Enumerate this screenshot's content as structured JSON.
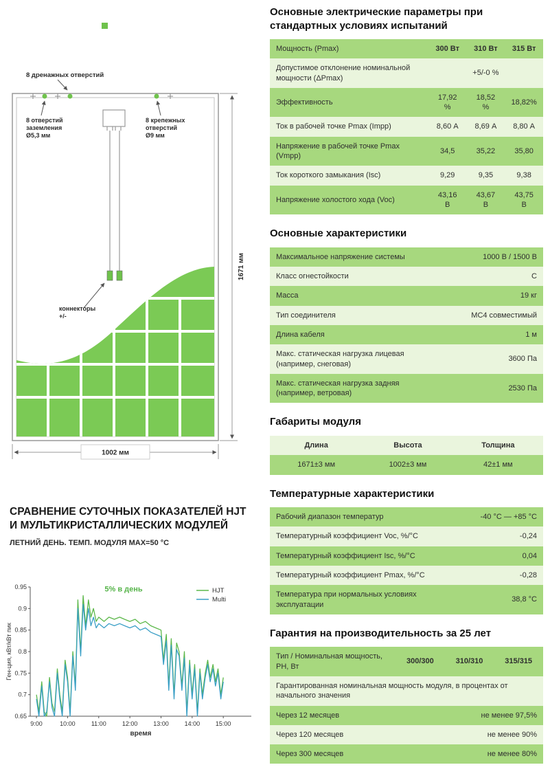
{
  "colors": {
    "row_green": "#a7d87e",
    "row_light": "#eaf5dd",
    "cell_green": "#7bca55",
    "accent_green": "#58b54a",
    "chart_hjt": "#5cb84a",
    "chart_multi": "#3a9fc6",
    "frame_gray": "#999999"
  },
  "diagram": {
    "drain_label": "8 дренажных отверстий",
    "ground_label": [
      "8 отверстий",
      "заземления",
      "Ø5,3 мм"
    ],
    "mount_label": [
      "8 крепежных",
      "отверстий",
      "Ø9 мм"
    ],
    "connectors_label": [
      "коннекторы",
      "+/-"
    ],
    "height_dim": "1671 мм",
    "width_dim": "1002 мм"
  },
  "comparison": {
    "title": "Сравнение суточных показателей HJT и мультикристаллических модулей",
    "subtitle": "ЛЕТНИЙ ДЕНЬ. ТЕМП. МОДУЛЯ MAX=50 °C"
  },
  "chart_data": {
    "type": "line",
    "title": "",
    "ylabel": "Ген-ция, кВт/кВт пик",
    "xlabel": "время",
    "annotation": "5% в день",
    "annotation_x": 11.8,
    "annotation_y": 0.94,
    "xlim": [
      8.8,
      15.9
    ],
    "ylim": [
      0.65,
      0.95
    ],
    "yticks": [
      "0.65",
      "0.7",
      "0.75",
      "0.8",
      "0.85",
      "0.9",
      "0.95"
    ],
    "ytick_values": [
      0.65,
      0.7,
      0.75,
      0.8,
      0.85,
      0.9,
      0.95
    ],
    "xticks": [
      "9:00",
      "10:00",
      "11:00",
      "12:00",
      "13:00",
      "14:00",
      "15:00"
    ],
    "xtick_values": [
      9,
      10,
      11,
      12,
      13,
      14,
      15
    ],
    "legend_position": "top-right",
    "grid": false,
    "x": [
      9.0,
      9.08,
      9.17,
      9.25,
      9.33,
      9.42,
      9.5,
      9.58,
      9.67,
      9.75,
      9.83,
      9.92,
      10.0,
      10.08,
      10.17,
      10.25,
      10.33,
      10.42,
      10.5,
      10.58,
      10.67,
      10.75,
      10.83,
      10.92,
      11.0,
      11.17,
      11.33,
      11.5,
      11.67,
      11.83,
      12.0,
      12.17,
      12.33,
      12.5,
      12.67,
      12.83,
      13.0,
      13.08,
      13.17,
      13.25,
      13.33,
      13.42,
      13.5,
      13.58,
      13.67,
      13.75,
      13.83,
      13.92,
      14.0,
      14.08,
      14.17,
      14.25,
      14.33,
      14.42,
      14.5,
      14.58,
      14.67,
      14.75,
      14.83,
      14.92,
      15.0
    ],
    "series": [
      {
        "name": "HJT",
        "color": "#5cb84a",
        "values": [
          0.7,
          0.66,
          0.73,
          0.66,
          0.65,
          0.74,
          0.68,
          0.66,
          0.76,
          0.7,
          0.66,
          0.78,
          0.74,
          0.66,
          0.8,
          0.72,
          0.92,
          0.8,
          0.93,
          0.86,
          0.92,
          0.88,
          0.9,
          0.87,
          0.88,
          0.87,
          0.88,
          0.875,
          0.88,
          0.875,
          0.87,
          0.875,
          0.865,
          0.87,
          0.86,
          0.855,
          0.85,
          0.78,
          0.84,
          0.72,
          0.83,
          0.7,
          0.82,
          0.8,
          0.72,
          0.8,
          0.66,
          0.78,
          0.7,
          0.77,
          0.66,
          0.76,
          0.7,
          0.75,
          0.78,
          0.74,
          0.77,
          0.73,
          0.76,
          0.7,
          0.74
        ]
      },
      {
        "name": "Multi",
        "color": "#3a9fc6",
        "values": [
          0.69,
          0.65,
          0.72,
          0.65,
          0.66,
          0.73,
          0.67,
          0.65,
          0.75,
          0.69,
          0.65,
          0.77,
          0.73,
          0.65,
          0.79,
          0.71,
          0.9,
          0.79,
          0.91,
          0.85,
          0.9,
          0.86,
          0.88,
          0.855,
          0.865,
          0.855,
          0.865,
          0.86,
          0.865,
          0.86,
          0.855,
          0.86,
          0.85,
          0.855,
          0.845,
          0.84,
          0.835,
          0.77,
          0.825,
          0.71,
          0.815,
          0.69,
          0.805,
          0.79,
          0.71,
          0.785,
          0.65,
          0.77,
          0.69,
          0.76,
          0.65,
          0.75,
          0.69,
          0.74,
          0.77,
          0.73,
          0.76,
          0.72,
          0.75,
          0.69,
          0.73
        ]
      }
    ]
  },
  "tables": {
    "electrical": {
      "title": "Основные электрические параметры при стандартных условиях испытаний",
      "col_widths": [
        "58%",
        "14%",
        "14%",
        "14%"
      ],
      "val_align": "c",
      "rows": [
        {
          "bg": "g",
          "cells": [
            {
              "t": "Мощность (Pmax)"
            },
            {
              "t": "300 Вт",
              "b": 1
            },
            {
              "t": "310 Вт",
              "b": 1
            },
            {
              "t": "315 Вт",
              "b": 1
            }
          ]
        },
        {
          "bg": "l",
          "cells": [
            {
              "t": "Допустимое отклонение номинальной мощности (ΔPmax)"
            },
            {
              "t": "+5/-0 %",
              "span": 3
            }
          ]
        },
        {
          "bg": "g",
          "cells": [
            {
              "t": "Эффективность"
            },
            {
              "t": "17,92 %"
            },
            {
              "t": "18,52 %"
            },
            {
              "t": "18,82%"
            }
          ]
        },
        {
          "bg": "l",
          "cells": [
            {
              "t": "Ток в рабочей точке Pmax (Impp)"
            },
            {
              "t": "8,60 А"
            },
            {
              "t": "8,69 А"
            },
            {
              "t": "8,80 А"
            }
          ]
        },
        {
          "bg": "g",
          "cells": [
            {
              "t": "Напряжение в рабочей точке Pmax (Vmpp)"
            },
            {
              "t": "34,5"
            },
            {
              "t": "35,22"
            },
            {
              "t": "35,80"
            }
          ]
        },
        {
          "bg": "l",
          "cells": [
            {
              "t": "Ток короткого замыкания (Isc)"
            },
            {
              "t": "9,29"
            },
            {
              "t": "9,35"
            },
            {
              "t": "9,38"
            }
          ]
        },
        {
          "bg": "g",
          "cells": [
            {
              "t": "Напряжение холостого хода (Voc)"
            },
            {
              "t": "43,16 В"
            },
            {
              "t": "43,67 В"
            },
            {
              "t": "43,75 В"
            }
          ]
        }
      ]
    },
    "characteristics": {
      "title": "Основные характеристики",
      "col_widths": [
        "62%",
        "38%"
      ],
      "val_align": "r",
      "rows": [
        {
          "bg": "g",
          "cells": [
            {
              "t": "Максимальное напряжение системы"
            },
            {
              "t": "1000 В / 1500 В"
            }
          ]
        },
        {
          "bg": "l",
          "cells": [
            {
              "t": "Класс огнестойкости"
            },
            {
              "t": "С"
            }
          ]
        },
        {
          "bg": "g",
          "cells": [
            {
              "t": "Масса"
            },
            {
              "t": "19 кг"
            }
          ]
        },
        {
          "bg": "l",
          "cells": [
            {
              "t": "Тип соединителя"
            },
            {
              "t": "MC4 совместимый"
            }
          ]
        },
        {
          "bg": "g",
          "cells": [
            {
              "t": "Длина кабеля"
            },
            {
              "t": "1 м"
            }
          ]
        },
        {
          "bg": "l",
          "cells": [
            {
              "t": "Макс. статическая нагрузка лицевая (например, снеговая)"
            },
            {
              "t": "3600 Па"
            }
          ]
        },
        {
          "bg": "g",
          "cells": [
            {
              "t": "Макс. статическая нагрузка задняя (например, ветровая)"
            },
            {
              "t": "2530 Па"
            }
          ]
        }
      ]
    },
    "dimensions": {
      "title": "Габариты модуля",
      "col_widths": [
        "34%",
        "33%",
        "33%"
      ],
      "val_align": "c",
      "rows": [
        {
          "bg": "l",
          "cells": [
            {
              "t": "Длина",
              "b": 1,
              "al": "c"
            },
            {
              "t": "Высота",
              "b": 1
            },
            {
              "t": "Толщина",
              "b": 1
            }
          ]
        },
        {
          "bg": "g",
          "cells": [
            {
              "t": "1671±3 мм",
              "al": "c"
            },
            {
              "t": "1002±3 мм"
            },
            {
              "t": "42±1 мм"
            }
          ]
        }
      ]
    },
    "temperature": {
      "title": "Температурные характеристики",
      "col_widths": [
        "72%",
        "28%"
      ],
      "val_align": "r",
      "rows": [
        {
          "bg": "g",
          "cells": [
            {
              "t": "Рабочий диапазон температур"
            },
            {
              "t": "-40 °C — +85 °C"
            }
          ]
        },
        {
          "bg": "l",
          "cells": [
            {
              "t": "Температурный коэффициент Voc, %/°C"
            },
            {
              "t": "-0,24"
            }
          ]
        },
        {
          "bg": "g",
          "cells": [
            {
              "t": "Температурный коэффициент Isc, %/°C"
            },
            {
              "t": "0,04"
            }
          ]
        },
        {
          "bg": "l",
          "cells": [
            {
              "t": "Температурный коэффициент Pmax, %/°C"
            },
            {
              "t": "-0,28"
            }
          ]
        },
        {
          "bg": "g",
          "cells": [
            {
              "t": "Температура при нормальных условиях эксплуатации"
            },
            {
              "t": "38,8 °C"
            }
          ]
        }
      ]
    },
    "warranty": {
      "title": "Гарантия на производительность за 25 лет",
      "col_widths": [
        "46%",
        "18%",
        "18%",
        "18%"
      ],
      "val_align": "c",
      "rows": [
        {
          "bg": "g",
          "cells": [
            {
              "t": "Тип / Номинальная мощность, РН, Вт"
            },
            {
              "t": "300/300",
              "b": 1
            },
            {
              "t": "310/310",
              "b": 1
            },
            {
              "t": "315/315",
              "b": 1
            }
          ]
        },
        {
          "bg": "l",
          "cells": [
            {
              "t": "Гарантированная номинальная мощность модуля, в процентах от начального значения",
              "span": 4
            }
          ]
        },
        {
          "bg": "g",
          "cells": [
            {
              "t": "Через 12 месяцев"
            },
            {
              "t": "не менее 97,5%",
              "span": 3,
              "al": "r"
            }
          ]
        },
        {
          "bg": "l",
          "cells": [
            {
              "t": "Через 120 месяцев"
            },
            {
              "t": "не менее 90%",
              "span": 3,
              "al": "r"
            }
          ]
        },
        {
          "bg": "g",
          "cells": [
            {
              "t": "Через 300 месяцев"
            },
            {
              "t": "не менее 80%",
              "span": 3,
              "al": "r"
            }
          ]
        }
      ]
    }
  }
}
